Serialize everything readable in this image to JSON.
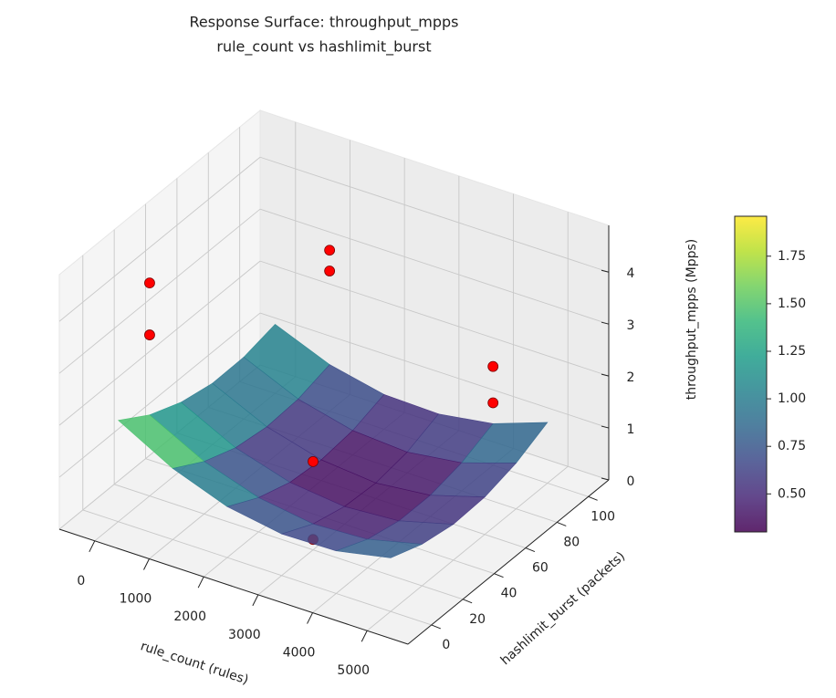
{
  "chart_data": {
    "type": "surface",
    "title": "Response Surface: throughput_mpps",
    "subtitle": "rule_count vs hashlimit_burst",
    "xlabel": "rule_count (rules)",
    "ylabel": "hashlimit_burst (packets)",
    "zlabel": "throughput_mpps (Mpps)",
    "xlim": [
      -650,
      5750
    ],
    "ylim": [
      -15,
      113
    ],
    "zlim": [
      0,
      4.9
    ],
    "xticks": [
      0,
      1000,
      2000,
      3000,
      4000,
      5000
    ],
    "yticks": [
      0,
      20,
      40,
      60,
      80,
      100
    ],
    "zticks": [
      0,
      1,
      2,
      3,
      4
    ],
    "grid": true,
    "surface": {
      "x": [
        0,
        1000,
        2000,
        3000,
        4000,
        5000
      ],
      "y": [
        0,
        20,
        40,
        60,
        80,
        100
      ],
      "z": [
        [
          1.95,
          1.56,
          1.31,
          1.18,
          1.19,
          1.33
        ],
        [
          1.37,
          1.01,
          0.78,
          0.69,
          0.73,
          0.9
        ],
        [
          0.98,
          0.66,
          0.46,
          0.4,
          0.47,
          0.67
        ],
        [
          0.8,
          0.5,
          0.34,
          0.3,
          0.4,
          0.64
        ],
        [
          0.82,
          0.55,
          0.41,
          0.41,
          0.54,
          0.8
        ],
        [
          1.03,
          0.8,
          0.69,
          0.72,
          0.88,
          1.17
        ]
      ],
      "colormap": "viridis",
      "clim": [
        0.3,
        1.96
      ],
      "alpha": 0.85
    },
    "colorbar": {
      "ticks": [
        {
          "value": 0.5,
          "label": "0.50"
        },
        0.75,
        {
          "value": 1,
          "label": "1.00"
        },
        1.25,
        {
          "value": 1.5,
          "label": "1.50"
        },
        1.75
      ]
    },
    "scatter": {
      "x": [
        0,
        0,
        1000,
        1000,
        3000,
        3000,
        4000,
        4000
      ],
      "y": [
        20,
        20,
        100,
        100,
        20,
        20,
        100,
        100
      ],
      "z": [
        4.1,
        3.1,
        3.1,
        2.7,
        1.7,
        0.2,
        1.9,
        1.2
      ],
      "color": "#ff0000"
    }
  }
}
